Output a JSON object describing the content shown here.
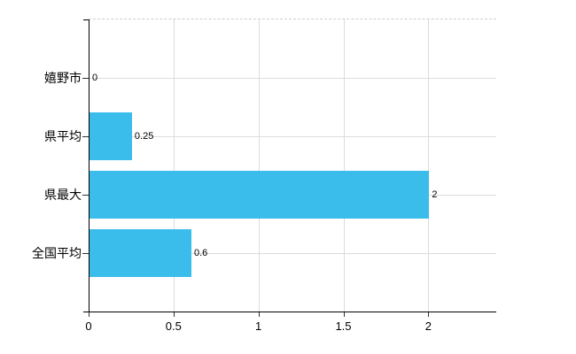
{
  "chart_data": {
    "type": "bar",
    "orientation": "horizontal",
    "title": "",
    "xlabel": "",
    "ylabel": "",
    "categories": [
      "嬉野市",
      "県平均",
      "県最大",
      "全国平均"
    ],
    "values": [
      0,
      0.25,
      2,
      0.6
    ],
    "value_labels": [
      "0",
      "0.25",
      "2",
      "0.6"
    ],
    "x_ticks": [
      0,
      0.5,
      1,
      1.5,
      2
    ],
    "x_tick_labels": [
      "0",
      "0.5",
      "1",
      "1.5",
      "2"
    ],
    "xlim": [
      0,
      2.4
    ],
    "grid": true,
    "legend": false,
    "colors": {
      "bar": "#3bbdec",
      "grid": "#d9ddd9",
      "axis": "#000000",
      "top_border_dashed": "#cfccd6",
      "text": "#000000"
    }
  }
}
